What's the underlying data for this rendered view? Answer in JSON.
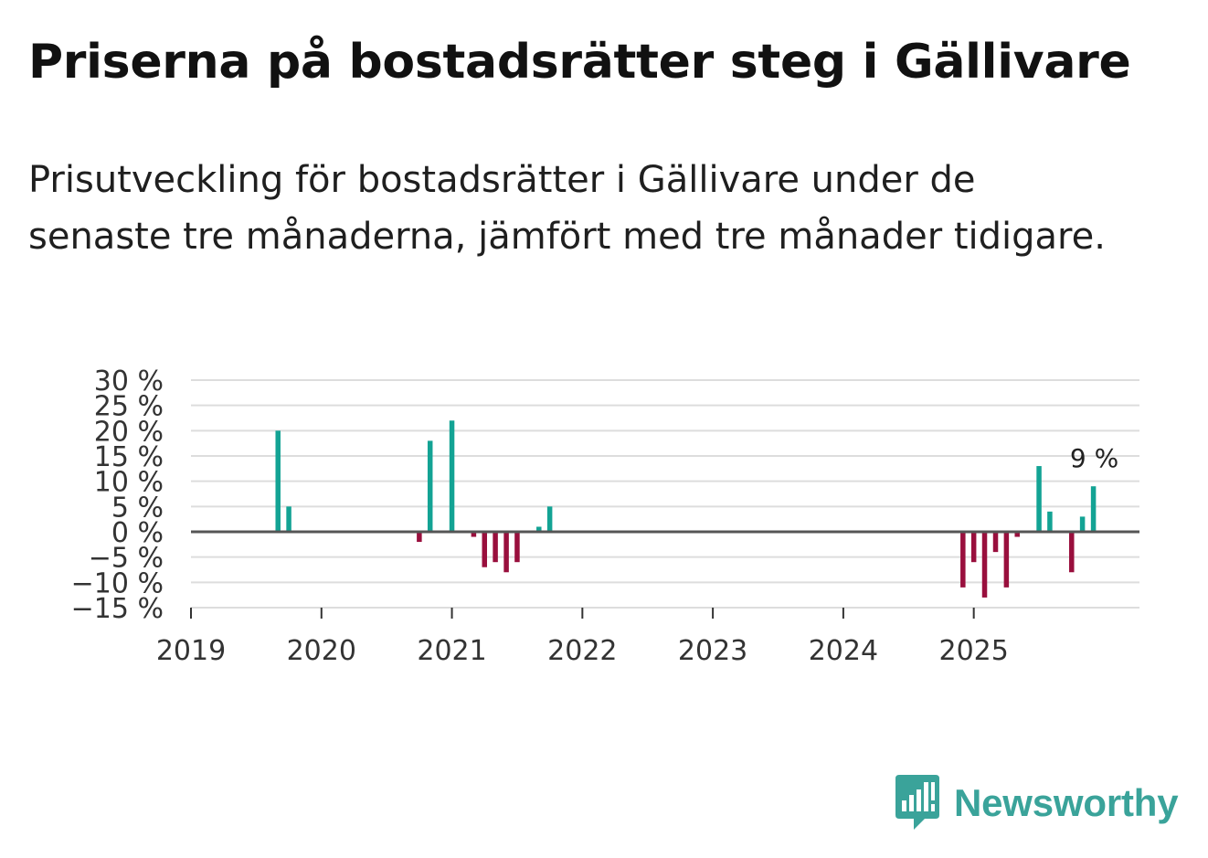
{
  "header": {
    "title": "Priserna på bostadsrätter steg i Gällivare",
    "subtitle": "Prisutveckling för bostadsrätter i Gällivare under de senaste tre månaderna, jämfört med tre månader tidigare."
  },
  "brand": {
    "name": "Newsworthy",
    "icon": "newsworthy-logo-icon",
    "color": "#3aa39a"
  },
  "colors": {
    "positive": "#13a394",
    "negative": "#990f3d",
    "grid": "#dddddd",
    "zero": "#555555"
  },
  "chart_data": {
    "type": "bar",
    "title": "Priserna på bostadsrätter steg i Gällivare",
    "xlabel": "",
    "ylabel": "",
    "ylim": [
      -15,
      30
    ],
    "xlim": [
      2019.0,
      2026.27
    ],
    "yticks": [
      30,
      25,
      20,
      15,
      10,
      5,
      0,
      -5,
      -10,
      -15
    ],
    "ytick_labels": [
      "30 %",
      "25 %",
      "20 %",
      "15 %",
      "10 %",
      "5 %",
      "0 %",
      "−5 %",
      "−10 %",
      "−15 %"
    ],
    "xticks": [
      2019,
      2020,
      2021,
      2022,
      2023,
      2024,
      2025
    ],
    "xtick_labels": [
      "2019",
      "2020",
      "2021",
      "2022",
      "2023",
      "2024",
      "2025"
    ],
    "grid": true,
    "series": [
      {
        "name": "Prisutveckling",
        "points": [
          {
            "t": 2019.667,
            "v": 20
          },
          {
            "t": 2019.75,
            "v": 5
          },
          {
            "t": 2020.75,
            "v": -2
          },
          {
            "t": 2020.833,
            "v": 18
          },
          {
            "t": 2021.0,
            "v": 22
          },
          {
            "t": 2021.167,
            "v": -1
          },
          {
            "t": 2021.25,
            "v": -7
          },
          {
            "t": 2021.333,
            "v": -6
          },
          {
            "t": 2021.417,
            "v": -8
          },
          {
            "t": 2021.5,
            "v": -6
          },
          {
            "t": 2021.667,
            "v": 1
          },
          {
            "t": 2021.75,
            "v": 5
          },
          {
            "t": 2024.917,
            "v": -11
          },
          {
            "t": 2025.0,
            "v": -6
          },
          {
            "t": 2025.083,
            "v": -13
          },
          {
            "t": 2025.167,
            "v": -4
          },
          {
            "t": 2025.25,
            "v": -11
          },
          {
            "t": 2025.333,
            "v": -1
          },
          {
            "t": 2025.5,
            "v": 13
          },
          {
            "t": 2025.583,
            "v": 4
          },
          {
            "t": 2025.75,
            "v": -8
          },
          {
            "t": 2025.833,
            "v": 3
          },
          {
            "t": 2025.917,
            "v": 9
          }
        ]
      }
    ],
    "annotations": [
      {
        "text": "9 %",
        "t": 2025.917,
        "v": 9
      }
    ]
  }
}
